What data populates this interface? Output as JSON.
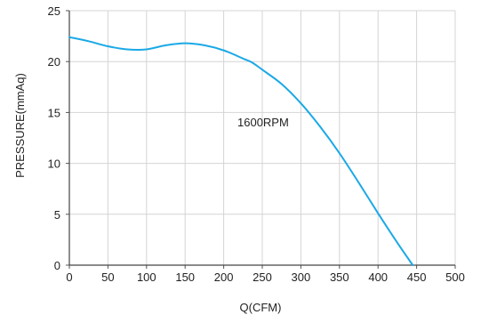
{
  "chart_data": {
    "type": "line",
    "title": "",
    "xlabel": "Q(CFM)",
    "ylabel": "PRESSURE(mmAq)",
    "xlim": [
      0,
      500
    ],
    "ylim": [
      0,
      25
    ],
    "xticks": [
      0,
      50,
      100,
      150,
      200,
      250,
      300,
      350,
      400,
      450,
      500
    ],
    "yticks": [
      0,
      5,
      10,
      15,
      20,
      25
    ],
    "grid": true,
    "annotation": "1600RPM",
    "series": [
      {
        "name": "1600RPM",
        "color": "#1ba9e6",
        "x": [
          0,
          25,
          50,
          75,
          100,
          125,
          150,
          175,
          200,
          225,
          237,
          250,
          275,
          300,
          325,
          350,
          375,
          400,
          425,
          445
        ],
        "y": [
          22.4,
          22.0,
          21.5,
          21.2,
          21.2,
          21.6,
          21.8,
          21.6,
          21.1,
          20.3,
          19.9,
          19.2,
          17.8,
          15.9,
          13.6,
          11.0,
          8.1,
          5.1,
          2.2,
          0
        ]
      }
    ]
  }
}
